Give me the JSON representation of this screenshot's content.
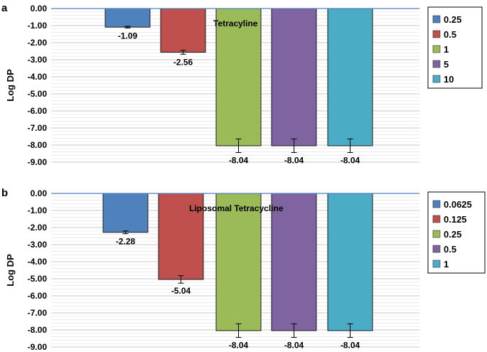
{
  "chart_data": [
    {
      "panel": "a",
      "type": "bar",
      "title": "Tetracyline",
      "ylabel": "Log DP",
      "ylim": [
        -9,
        0
      ],
      "yticks": [
        "0.00",
        "-1.00",
        "-2.00",
        "-3.00",
        "-4.00",
        "-5.00",
        "-6.00",
        "-7.00",
        "-8.00",
        "-9.00"
      ],
      "grid": true,
      "legend": "right",
      "series": [
        {
          "name": "0.25",
          "value": -1.09,
          "label": "-1.09",
          "error": 0.05,
          "color": "#4F81BD"
        },
        {
          "name": "0.5",
          "value": -2.56,
          "label": "-2.56",
          "error": 0.12,
          "color": "#C0504D"
        },
        {
          "name": "1",
          "value": -8.04,
          "label": "-8.04",
          "error": 0.4,
          "color": "#9BBB59"
        },
        {
          "name": "5",
          "value": -8.04,
          "label": "-8.04",
          "error": 0.4,
          "color": "#8064A2"
        },
        {
          "name": "10",
          "value": -8.04,
          "label": "-8.04",
          "error": 0.4,
          "color": "#4BACC6"
        }
      ]
    },
    {
      "panel": "b",
      "type": "bar",
      "title": "Liposomal Tetracycline",
      "ylabel": "Log DP",
      "ylim": [
        -9,
        0
      ],
      "yticks": [
        "0.00",
        "-1.00",
        "-2.00",
        "-3.00",
        "-4.00",
        "-5.00",
        "-6.00",
        "-7.00",
        "-8.00",
        "-9.00"
      ],
      "grid": true,
      "legend": "right",
      "series": [
        {
          "name": "0.0625",
          "value": -2.28,
          "label": "-2.28",
          "error": 0.08,
          "color": "#4F81BD"
        },
        {
          "name": "0.125",
          "value": -5.04,
          "label": "-5.04",
          "error": 0.22,
          "color": "#C0504D"
        },
        {
          "name": "0.25",
          "value": -8.04,
          "label": "-8.04",
          "error": 0.4,
          "color": "#9BBB59"
        },
        {
          "name": "0.5",
          "value": -8.04,
          "label": "-8.04",
          "error": 0.4,
          "color": "#8064A2"
        },
        {
          "name": "1",
          "value": -8.04,
          "label": "-8.04",
          "error": 0.4,
          "color": "#4BACC6"
        }
      ]
    }
  ]
}
